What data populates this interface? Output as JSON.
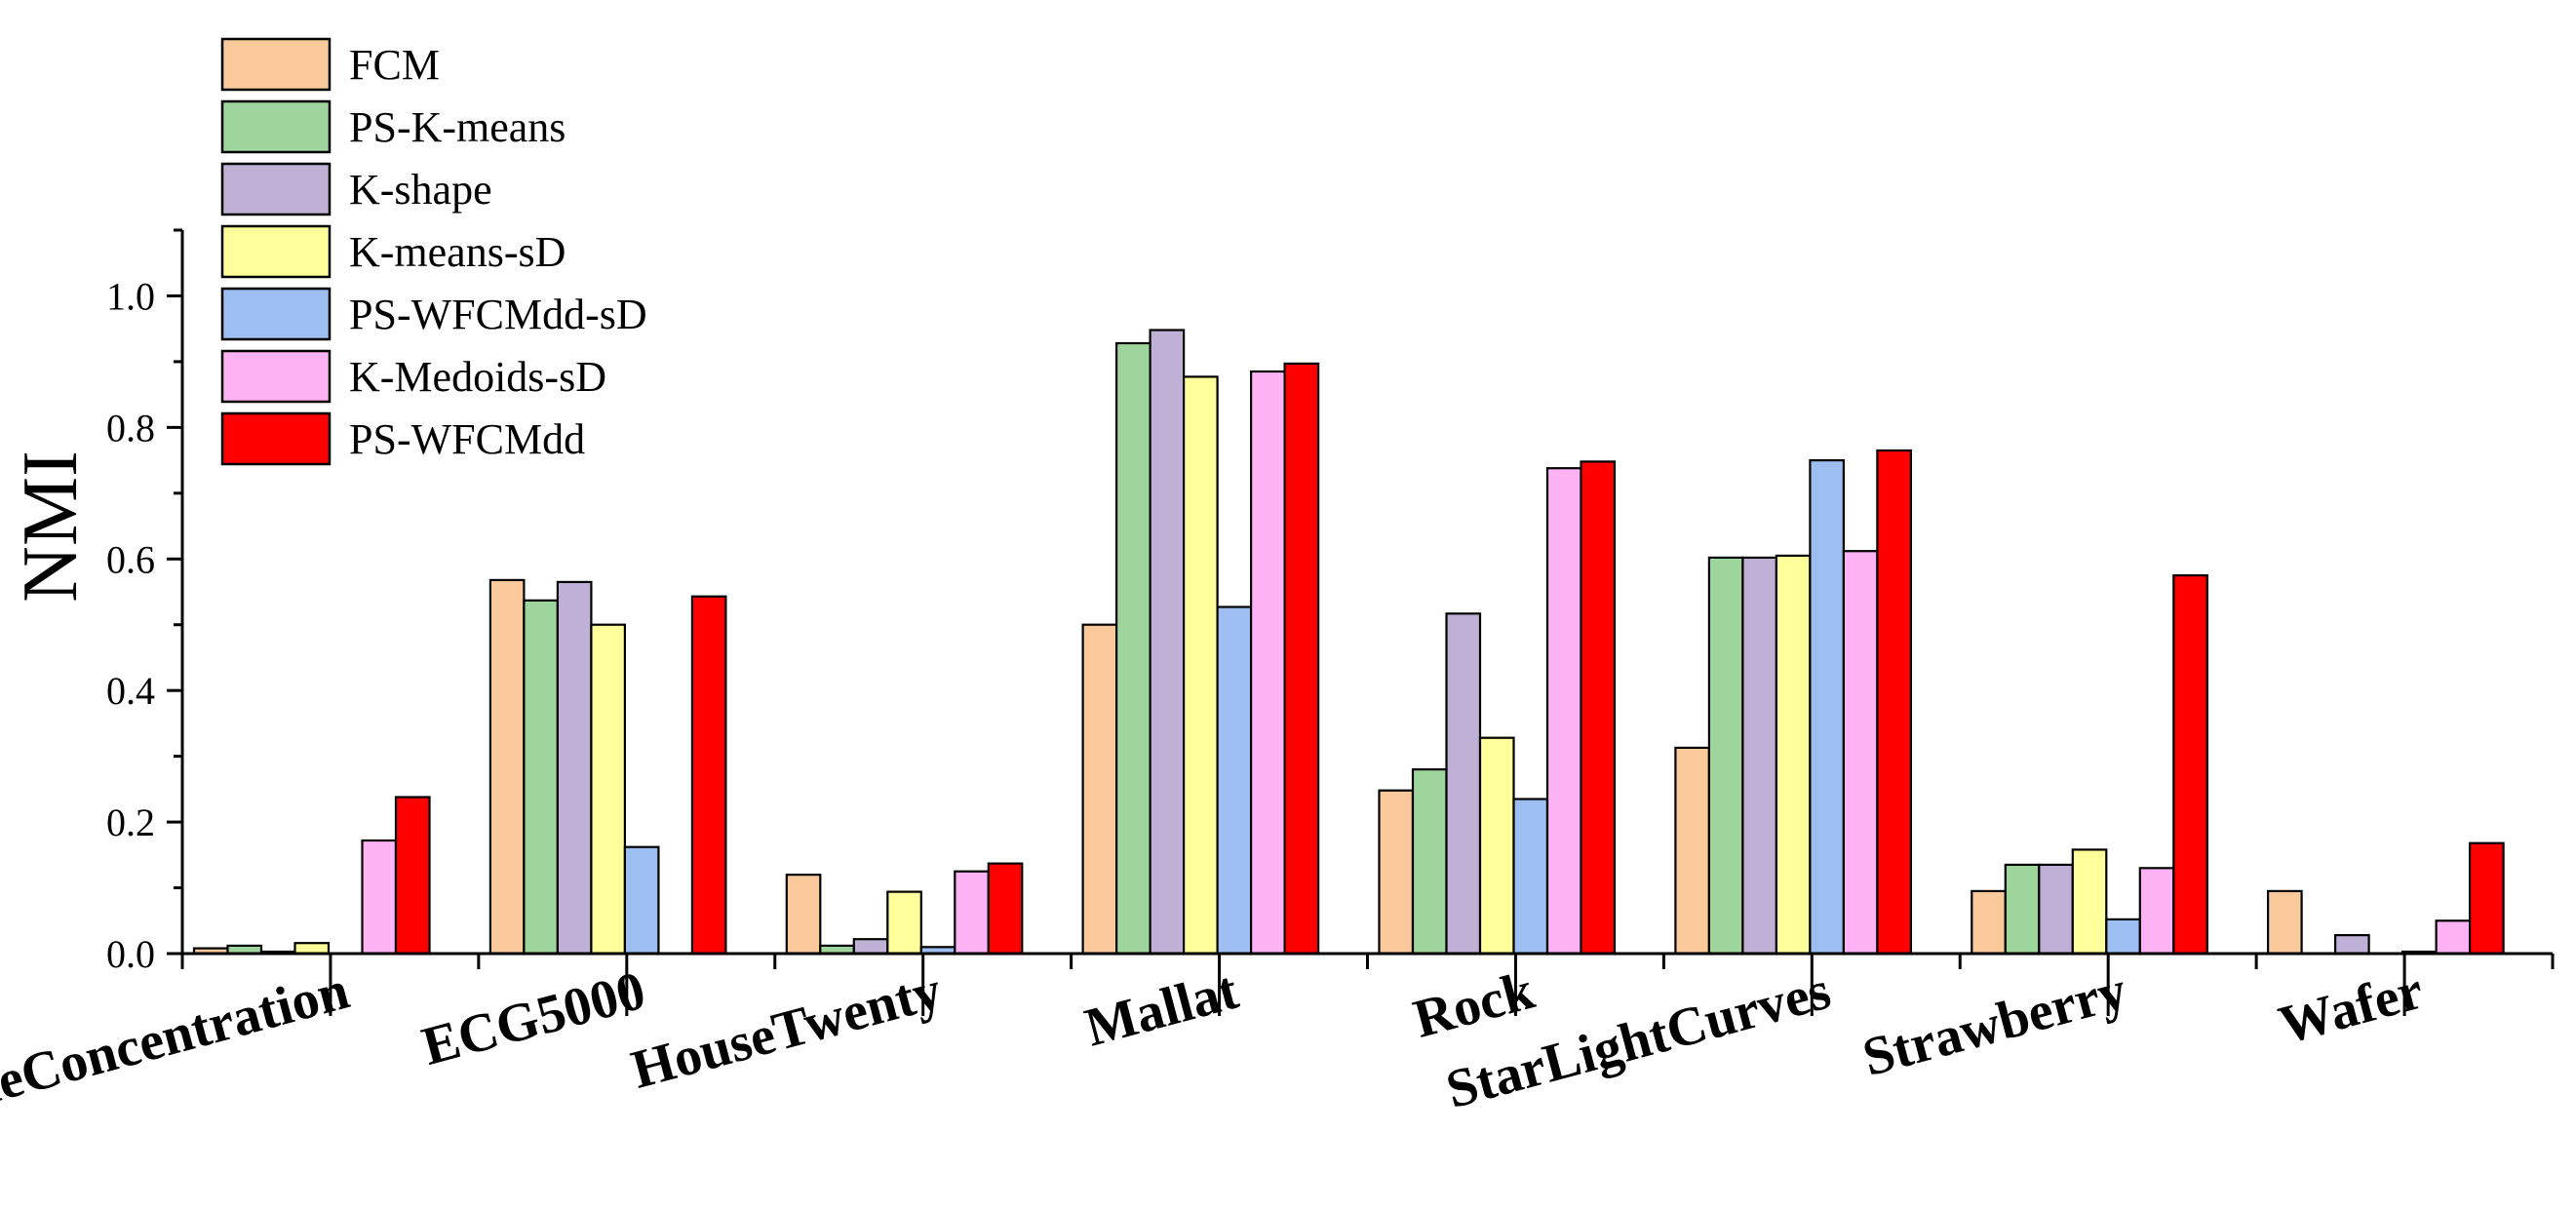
{
  "chart_data": {
    "type": "bar",
    "title": "",
    "xlabel": "",
    "ylabel": "NMI",
    "ylim": [
      0,
      1.1
    ],
    "yticks": [
      "0.0",
      "0.2",
      "0.4",
      "0.6",
      "0.8",
      "1.0"
    ],
    "ytick_values": [
      0.0,
      0.2,
      0.4,
      0.6,
      0.8,
      1.0
    ],
    "legend_position": "top-left",
    "categories": [
      "ChlorineConcentration",
      "ECG5000",
      "HouseTwenty",
      "Mallat",
      "Rock",
      "StarLightCurves",
      "Strawberry",
      "Wafer"
    ],
    "series": [
      {
        "name": "FCM",
        "color": "#F9C89B",
        "values": [
          0.008,
          0.568,
          0.12,
          0.5,
          0.248,
          0.313,
          0.095,
          0.095
        ]
      },
      {
        "name": "PS-K-means",
        "color": "#9ED59C",
        "values": [
          0.012,
          0.537,
          0.012,
          0.928,
          0.28,
          0.602,
          0.135,
          0.0
        ]
      },
      {
        "name": "K-shape",
        "color": "#BFB1D6",
        "values": [
          0.003,
          0.565,
          0.022,
          0.948,
          0.517,
          0.602,
          0.135,
          0.028
        ]
      },
      {
        "name": "K-means-sD",
        "color": "#FEFE9B",
        "values": [
          0.016,
          0.5,
          0.094,
          0.877,
          0.328,
          0.605,
          0.158,
          0.0
        ]
      },
      {
        "name": "PS-WFCMdd-sD",
        "color": "#9DBEF1",
        "values": [
          0.0,
          0.162,
          0.01,
          0.527,
          0.235,
          0.75,
          0.052,
          0.003
        ]
      },
      {
        "name": "K-Medoids-sD",
        "color": "#FDB2F3",
        "values": [
          0.172,
          0.0,
          0.125,
          0.885,
          0.738,
          0.612,
          0.13,
          0.05
        ]
      },
      {
        "name": "PS-WFCMdd",
        "color": "#FE0000",
        "values": [
          0.238,
          0.543,
          0.137,
          0.897,
          0.748,
          0.765,
          0.575,
          0.168
        ]
      }
    ]
  }
}
